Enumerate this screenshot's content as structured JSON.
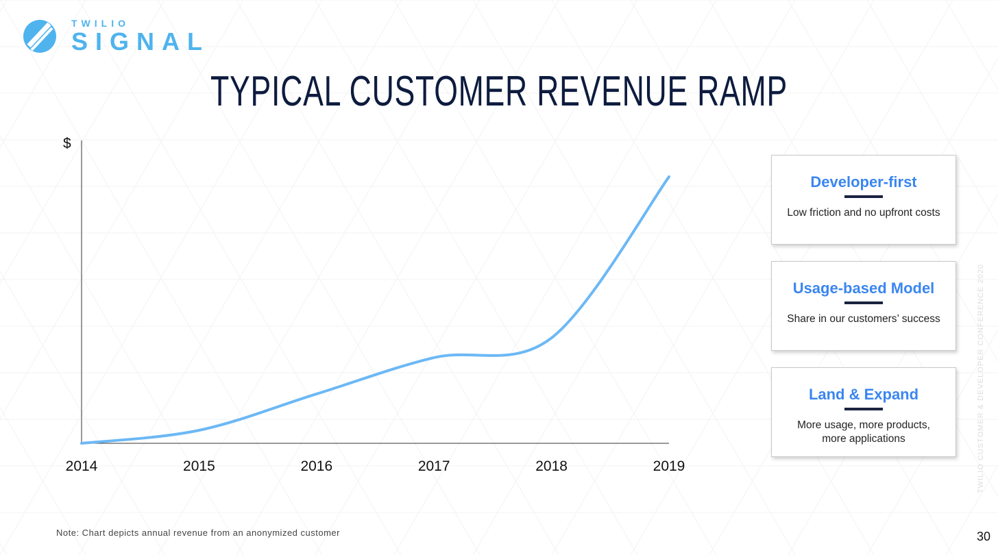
{
  "logo": {
    "small": "TWILIO",
    "big": "SIGNAL"
  },
  "title": "TYPICAL CUSTOMER REVENUE RAMP",
  "chart_data": {
    "type": "line",
    "title": "",
    "xlabel": "",
    "ylabel": "$",
    "x": [
      2014,
      2015,
      2016,
      2017,
      2018,
      2019
    ],
    "x_tick_labels": [
      "2014",
      "2015",
      "2016",
      "2017",
      "2018",
      "2019"
    ],
    "series": [
      {
        "values": [
          0,
          4.3,
          16.3,
          28.3,
          34.8,
          88
        ]
      }
    ],
    "ylim": [
      0,
      100
    ],
    "xlim": [
      2014,
      2019
    ],
    "grid": false,
    "line_color": "#6cb8f5"
  },
  "cards": [
    {
      "heading": "Developer-first",
      "text": "Low friction and no upfront costs"
    },
    {
      "heading": "Usage-based Model",
      "text": "Share in our customers’ success"
    },
    {
      "heading": "Land & Expand",
      "text": "More usage, more products, more applications"
    }
  ],
  "note": "Note: Chart depicts annual revenue from an anonymized customer",
  "footer_vertical": "TWILIO CUSTOMER & DEVELOPER CONFERENCE 2020",
  "page_number": "30",
  "colors": {
    "title": "#0d1b3e",
    "accent": "#4fb3ee",
    "card_heading": "#3a86f0"
  }
}
